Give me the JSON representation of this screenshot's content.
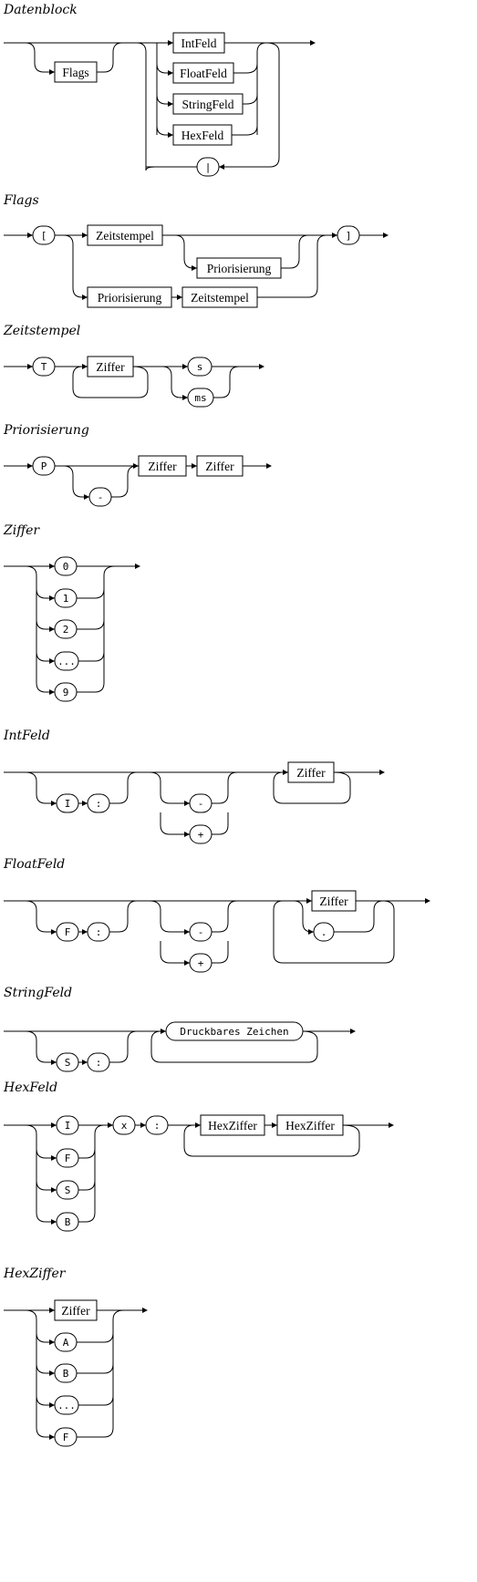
{
  "rules": [
    {
      "title": "Datenblock"
    },
    {
      "title": "Flags"
    },
    {
      "title": "Zeitstempel"
    },
    {
      "title": "Priorisierung"
    },
    {
      "title": "Ziffer"
    },
    {
      "title": "IntFeld"
    },
    {
      "title": "FloatFeld"
    },
    {
      "title": "StringFeld"
    },
    {
      "title": "HexFeld"
    },
    {
      "title": "HexZiffer"
    }
  ],
  "labels": {
    "flags": "Flags",
    "intfeld": "IntFeld",
    "floatfeld": "FloatFeld",
    "stringfeld": "StringFeld",
    "hexfeld": "HexFeld",
    "pipe": "|",
    "lbracket": "[",
    "rbracket": "]",
    "zeitstempel": "Zeitstempel",
    "priorisierung": "Priorisierung",
    "T": "T",
    "ziffer": "Ziffer",
    "s": "s",
    "ms": "ms",
    "P": "P",
    "minus": "-",
    "plus": "+",
    "zero": "0",
    "one": "1",
    "two": "2",
    "dots": "...",
    "nine": "9",
    "I": "I",
    "colon": ":",
    "F": "F",
    "dot": ".",
    "S": "S",
    "druckbares": "Druckbares Zeichen",
    "B": "B",
    "x": "x",
    "hexziffer": "HexZiffer",
    "A": "A"
  }
}
